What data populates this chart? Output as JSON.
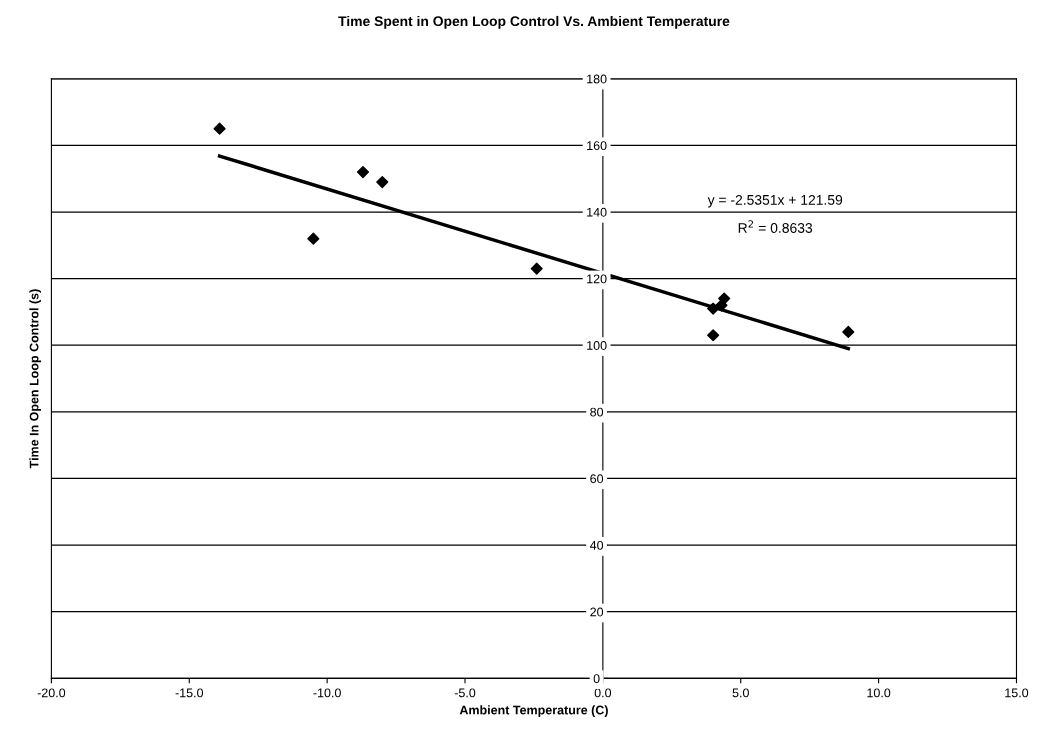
{
  "chart_data": {
    "type": "scatter",
    "title": "Time Spent in Open Loop Control Vs. Ambient Temperature",
    "xlabel": "Ambient Temperature (C)",
    "ylabel": "Time In Open Loop Control (s)",
    "series": [
      {
        "type": "scatter",
        "color": "#000000",
        "marker": "diamond",
        "x": [
          -13.9,
          -10.5,
          -8.7,
          -8.0,
          -2.4,
          4.0,
          4.0,
          4.3,
          4.4,
          8.9
        ],
        "values": [
          165,
          132,
          152,
          149,
          123,
          103,
          111,
          112,
          114,
          104
        ]
      },
      {
        "type": "line",
        "color": "#000000",
        "marker": "none",
        "x": [
          -13.9,
          8.9
        ],
        "values": [
          156.8,
          99.0
        ]
      }
    ],
    "annotations": [
      "y = -2.5351x + 121.59",
      "R$^{2}$ = 0.8633"
    ],
    "xlim": [
      -20,
      15
    ],
    "xticks": [
      {
        "value": -20,
        "label": "-20.0"
      },
      {
        "value": -15,
        "label": "-15.0"
      },
      {
        "value": -10,
        "label": "-10.0"
      },
      {
        "value": -5,
        "label": "-5.0"
      },
      {
        "value": 0,
        "label": "0.0"
      },
      {
        "value": 5,
        "label": "5.0"
      },
      {
        "value": 10,
        "label": "10.0"
      },
      {
        "value": 15,
        "label": "15.0"
      }
    ],
    "ylim": [
      0,
      180
    ],
    "yticks": [
      0,
      20,
      40,
      60,
      80,
      100,
      120,
      140,
      160,
      180
    ],
    "grid": "y",
    "legend": false
  }
}
